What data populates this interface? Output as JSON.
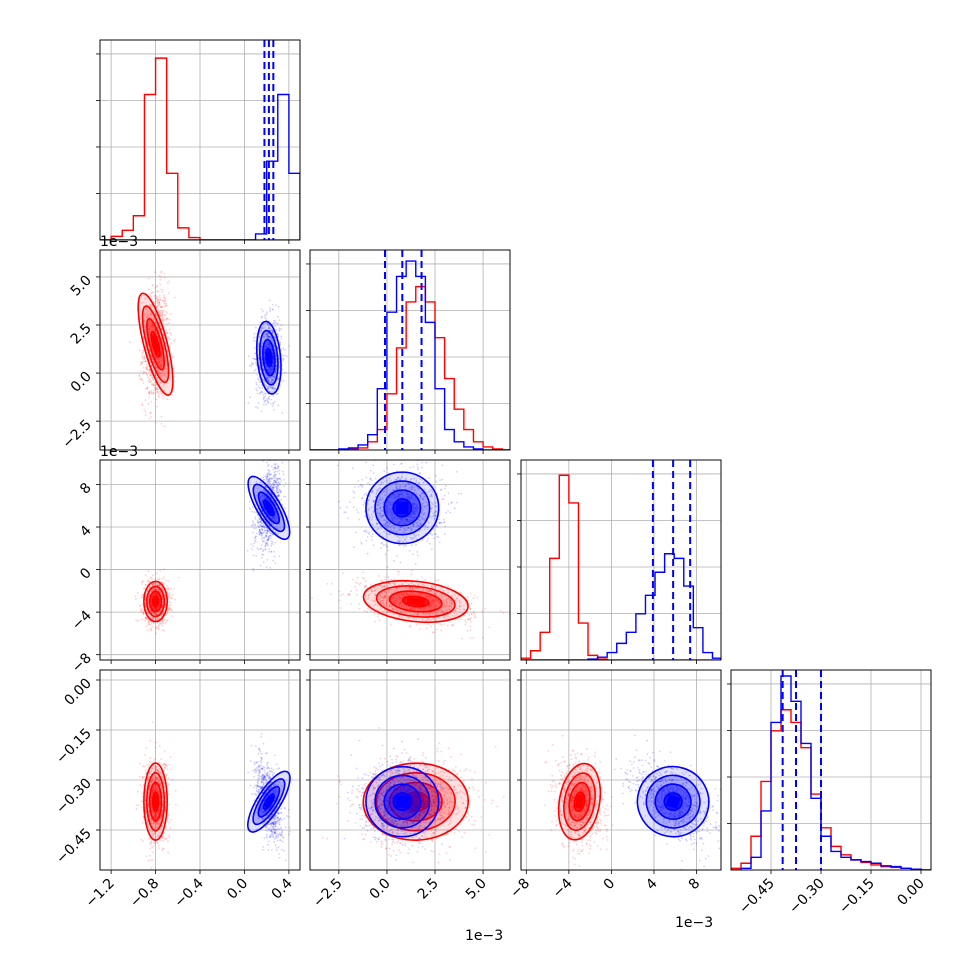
{
  "chart_data": {
    "type": "corner",
    "series": [
      {
        "name": "",
        "color": "#ff0000"
      },
      {
        "name": "",
        "color": "#0000ff"
      }
    ],
    "params": [
      {
        "ticks": [
          -1.2,
          -0.8,
          -0.4,
          0.0,
          0.4
        ],
        "tick_labels": [
          "−1.2",
          "−0.8",
          "−0.4",
          "0.0",
          "0.4"
        ],
        "range": [
          -1.3,
          0.5
        ],
        "offset": ""
      },
      {
        "ticks": [
          -2.5,
          0.0,
          2.5,
          5.0
        ],
        "tick_labels": [
          "−2.5",
          "0.0",
          "2.5",
          "5.0"
        ],
        "range": [
          -4.0,
          6.4
        ],
        "offset": "1e−3"
      },
      {
        "ticks": [
          -8,
          -4,
          0,
          4,
          8
        ],
        "tick_labels": [
          "−8",
          "−4",
          "0",
          "4",
          "8"
        ],
        "range": [
          -8.5,
          10.3
        ],
        "offset": "1e−3"
      },
      {
        "ticks": [
          -0.45,
          -0.3,
          -0.15,
          0.0
        ],
        "tick_labels": [
          "−0.45",
          "−0.30",
          "−0.15",
          "0.00"
        ],
        "range": [
          -0.57,
          0.03
        ],
        "offset": ""
      }
    ],
    "stats": {
      "red": [
        {
          "mean": -0.8,
          "sd": 0.05
        },
        {
          "mean": 1.5,
          "sd": 1.3
        },
        {
          "mean": -3.0,
          "sd": 0.9
        },
        {
          "mean": -0.365,
          "sd": 0.055
        }
      ],
      "blue": [
        {
          "mean": 0.22,
          "sd": 0.05
        },
        {
          "mean": 0.8,
          "sd": 0.9
        },
        {
          "mean": 5.8,
          "sd": 1.6
        },
        {
          "mean": -0.365,
          "sd": 0.05
        }
      ]
    },
    "blue_quantiles": [
      [
        0.18,
        0.22,
        0.26
      ],
      [
        -0.1,
        0.8,
        1.8
      ],
      [
        3.9,
        5.8,
        7.4
      ],
      [
        -0.415,
        -0.375,
        -0.3
      ]
    ],
    "histograms": [
      {
        "bin_edges": [
          -1.3,
          -1.2,
          -1.1,
          -1.0,
          -0.9,
          -0.8,
          -0.7,
          -0.6,
          -0.5,
          -0.4,
          -0.3,
          -0.2,
          -0.1,
          0.0,
          0.1,
          0.2,
          0.3,
          0.4,
          0.5
        ],
        "red": [
          0,
          3,
          8,
          20,
          120,
          150,
          55,
          10,
          2,
          0,
          0,
          0,
          0,
          0,
          0,
          0,
          0,
          0
        ],
        "blue": [
          0,
          0,
          0,
          0,
          0,
          0,
          0,
          0,
          0,
          0,
          0,
          0,
          0,
          0,
          5,
          65,
          120,
          55
        ],
        "ylim": [
          0,
          160
        ]
      },
      {
        "bin_edges": [
          -4.0,
          -3.5,
          -3.0,
          -2.5,
          -2.0,
          -1.5,
          -1.0,
          -0.5,
          0.0,
          0.5,
          1.0,
          1.5,
          2.0,
          2.5,
          3.0,
          3.5,
          4.0,
          4.5,
          5.0,
          5.5,
          6.0,
          6.4
        ],
        "red": [
          0,
          0,
          0,
          0,
          1,
          2,
          8,
          20,
          55,
          100,
          145,
          160,
          145,
          110,
          70,
          40,
          20,
          8,
          3,
          1,
          0
        ],
        "blue": [
          0,
          0,
          0,
          1,
          2,
          5,
          15,
          60,
          135,
          170,
          185,
          170,
          125,
          60,
          20,
          8,
          3,
          1,
          0,
          0,
          0
        ],
        "ylim": [
          0,
          190
        ]
      },
      {
        "bin_edges": [
          -8.5,
          -7.6,
          -6.7,
          -5.8,
          -4.9,
          -4.0,
          -3.1,
          -2.2,
          -1.3,
          -0.4,
          0.5,
          1.4,
          2.3,
          3.2,
          4.1,
          5.0,
          5.9,
          6.8,
          7.7,
          8.6,
          9.5,
          10.3
        ],
        "red": [
          2,
          10,
          30,
          110,
          200,
          170,
          40,
          5,
          1,
          0,
          0,
          0,
          0,
          0,
          0,
          0,
          0,
          0,
          0,
          0,
          0
        ],
        "blue": [
          0,
          0,
          0,
          0,
          0,
          0,
          0,
          1,
          3,
          8,
          18,
          30,
          50,
          70,
          95,
          115,
          110,
          80,
          35,
          8,
          2
        ],
        "ylim": [
          0,
          210
        ]
      },
      {
        "bin_edges": [
          -0.57,
          -0.54,
          -0.51,
          -0.48,
          -0.45,
          -0.42,
          -0.39,
          -0.36,
          -0.33,
          -0.3,
          -0.27,
          -0.24,
          -0.21,
          -0.18,
          -0.15,
          -0.12,
          -0.09,
          -0.06,
          -0.03,
          0.0,
          0.03
        ],
        "red": [
          2,
          8,
          40,
          105,
          165,
          190,
          175,
          145,
          90,
          50,
          28,
          18,
          12,
          9,
          6,
          4,
          3,
          2,
          1,
          0
        ],
        "blue": [
          0,
          2,
          15,
          70,
          175,
          230,
          200,
          150,
          85,
          40,
          22,
          15,
          12,
          10,
          8,
          5,
          4,
          2,
          1,
          0
        ],
        "ylim": [
          0,
          230
        ]
      }
    ],
    "xlabel": "",
    "ylabel": "",
    "grid": true
  }
}
